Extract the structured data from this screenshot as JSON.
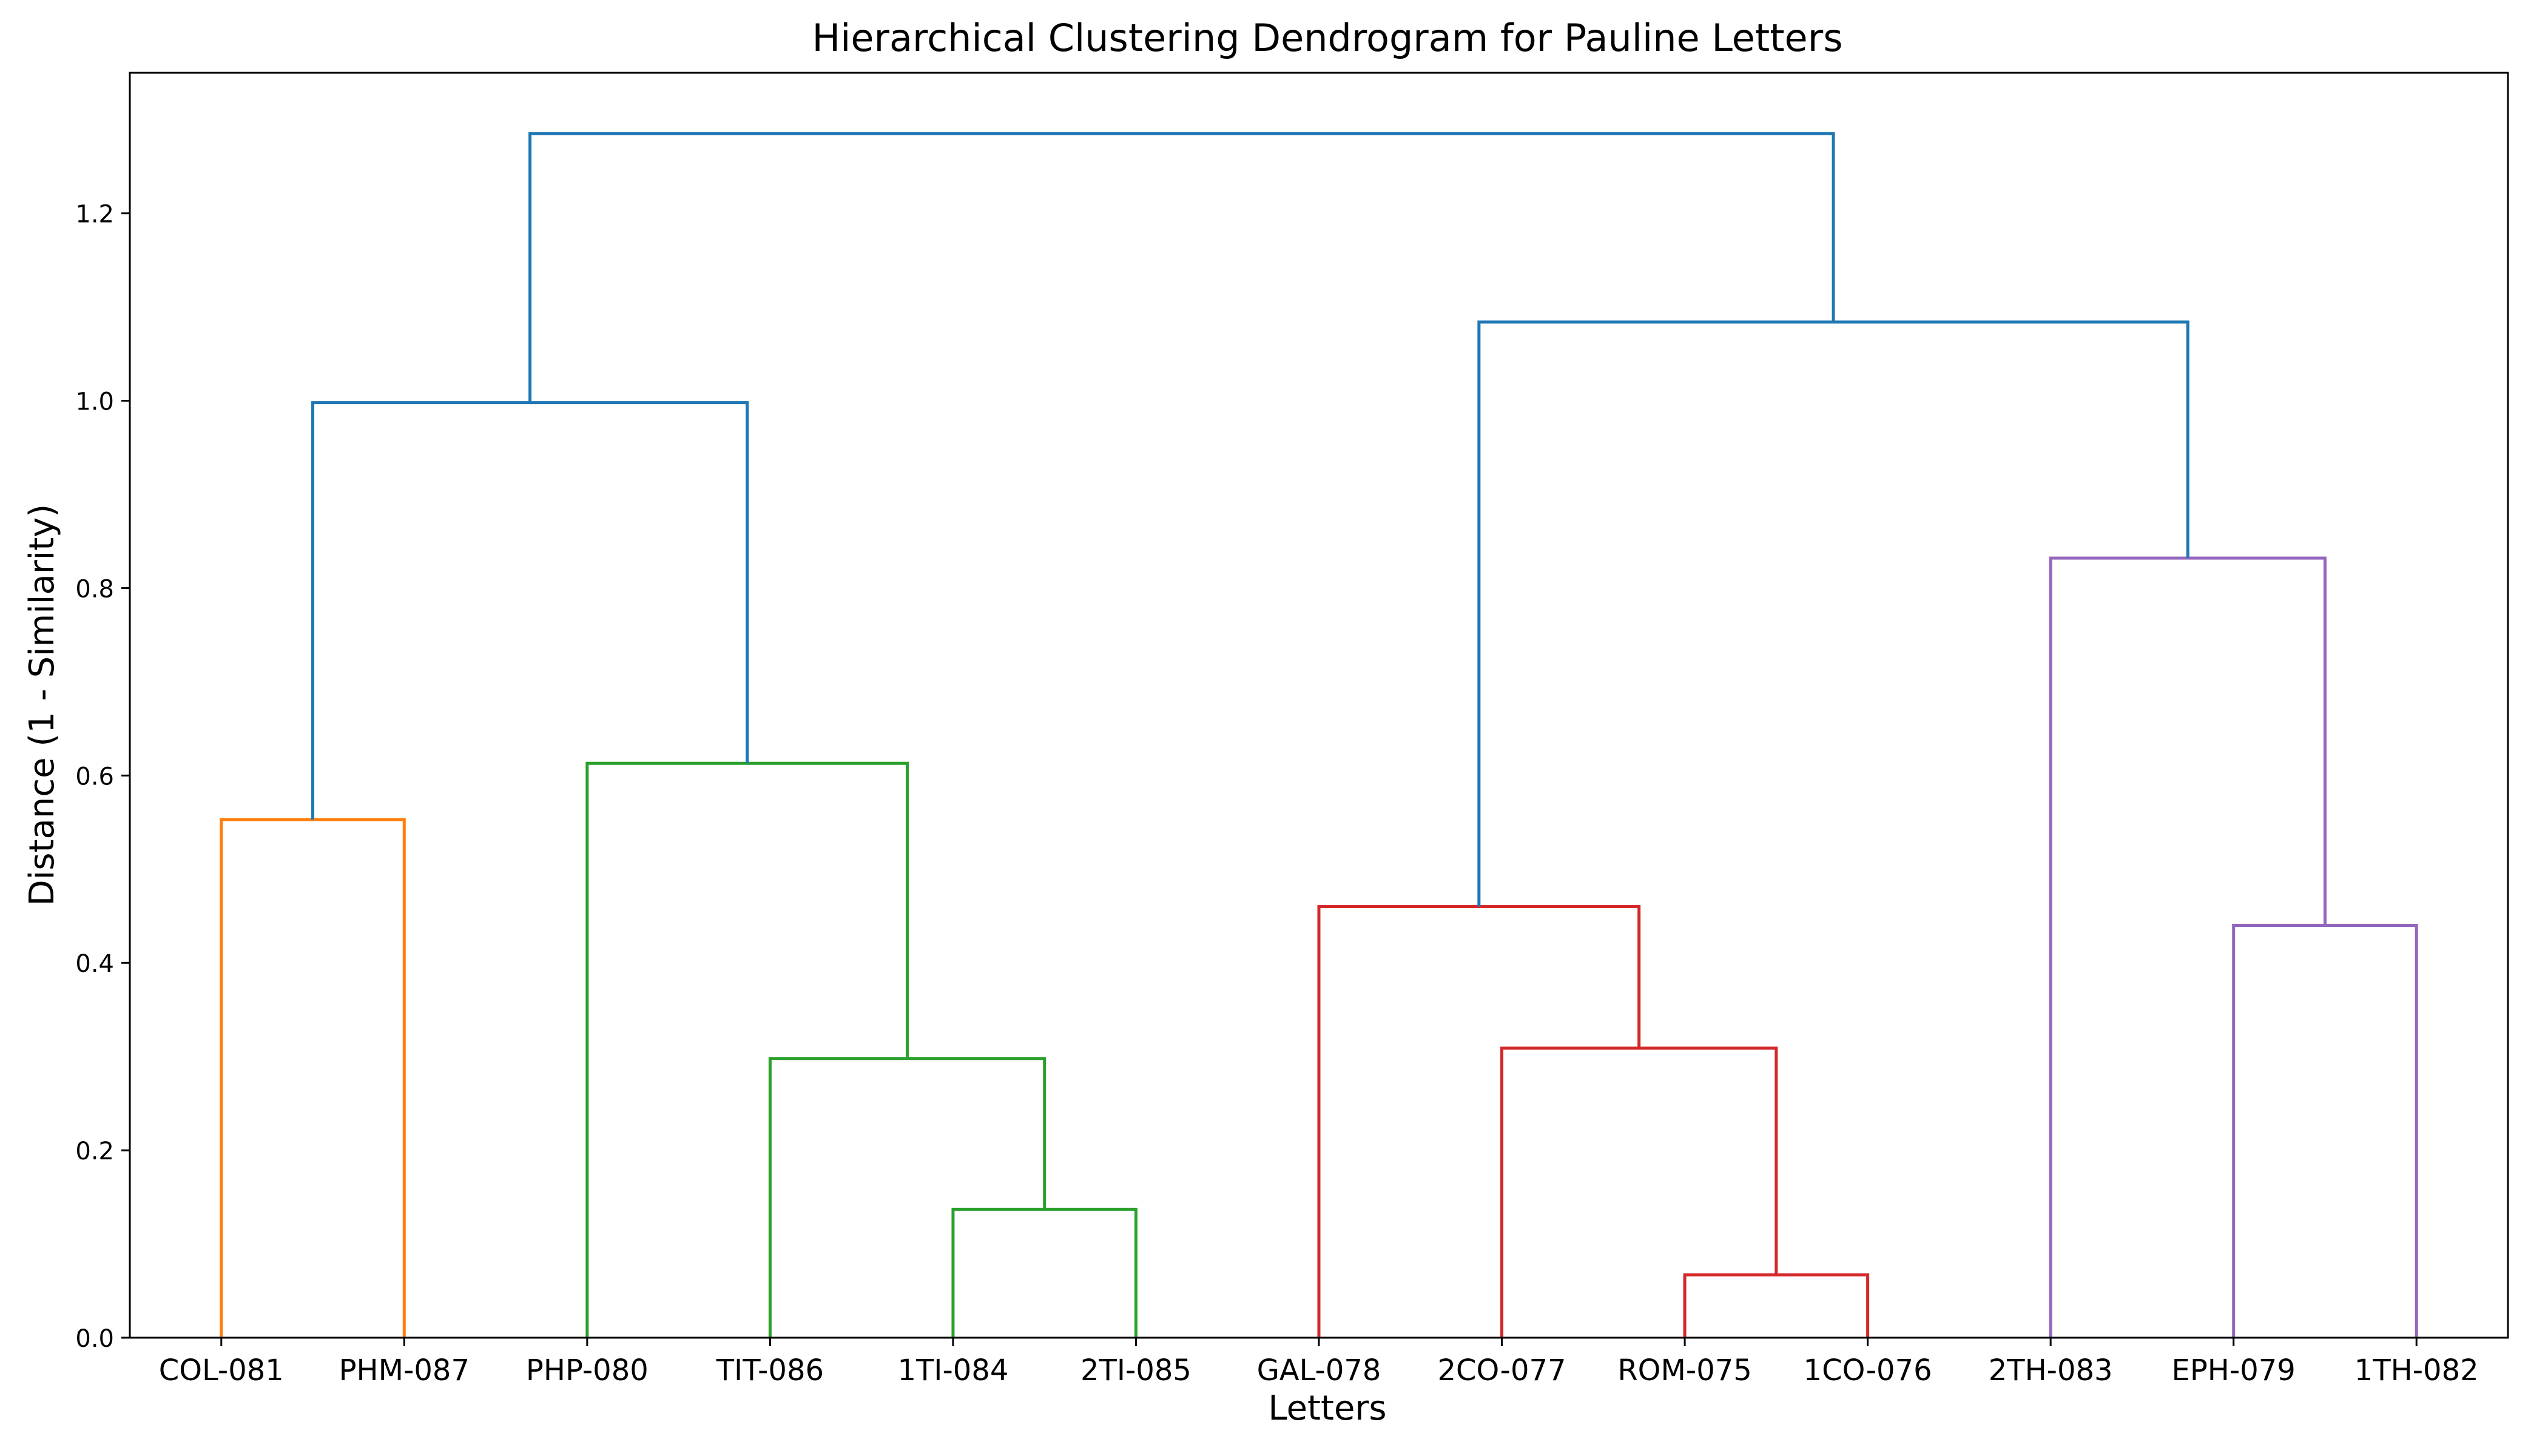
{
  "chart_data": {
    "type": "dendrogram",
    "title": "Hierarchical Clustering Dendrogram for Pauline Letters",
    "xlabel": "Letters",
    "ylabel": "Distance (1 - Similarity)",
    "ylim": [
      0,
      1.35
    ],
    "yticks": [
      0.0,
      0.2,
      0.4,
      0.6,
      0.8,
      1.0,
      1.2
    ],
    "ytick_labels": [
      "0.0",
      "0.2",
      "0.4",
      "0.6",
      "0.8",
      "1.0",
      "1.2"
    ],
    "grid": false,
    "leaves": [
      "COL-081",
      "PHM-087",
      "PHP-080",
      "TIT-086",
      "1TI-084",
      "2TI-085",
      "GAL-078",
      "2CO-077",
      "ROM-075",
      "1CO-076",
      "2TH-083",
      "EPH-079",
      "1TH-082"
    ],
    "colors": {
      "orange": "#ff7f0e",
      "green": "#2ca02c",
      "red": "#d62728",
      "purple": "#9467bd",
      "blue": "#1f77b4"
    },
    "links": [
      {
        "left": "COL-081",
        "right": "PHM-087",
        "height": 0.553,
        "color": "orange"
      },
      {
        "left": "1TI-084",
        "right": "2TI-085",
        "height": 0.137,
        "color": "green"
      },
      {
        "left": "TIT-086",
        "right": [
          "1TI-084",
          "2TI-085"
        ],
        "height": 0.298,
        "color": "green"
      },
      {
        "left": "PHP-080",
        "right": [
          "TIT-086",
          "1TI-084",
          "2TI-085"
        ],
        "height": 0.613,
        "color": "green"
      },
      {
        "left": "ROM-075",
        "right": "1CO-076",
        "height": 0.067,
        "color": "red"
      },
      {
        "left": "2CO-077",
        "right": [
          "ROM-075",
          "1CO-076"
        ],
        "height": 0.309,
        "color": "red"
      },
      {
        "left": "GAL-078",
        "right": [
          "2CO-077",
          "ROM-075",
          "1CO-076"
        ],
        "height": 0.46,
        "color": "red"
      },
      {
        "left": "EPH-079",
        "right": "1TH-082",
        "height": 0.44,
        "color": "purple"
      },
      {
        "left": "2TH-083",
        "right": [
          "EPH-079",
          "1TH-082"
        ],
        "height": 0.832,
        "color": "purple"
      },
      {
        "left": [
          "COL-081",
          "PHM-087"
        ],
        "right": [
          "PHP-080",
          "TIT-086",
          "1TI-084",
          "2TI-085"
        ],
        "height": 0.998,
        "color": "blue"
      },
      {
        "left": [
          "GAL-078",
          "2CO-077",
          "ROM-075",
          "1CO-076"
        ],
        "right": [
          "2TH-083",
          "EPH-079",
          "1TH-082"
        ],
        "height": 1.084,
        "color": "blue"
      },
      {
        "left": [
          "COL-081",
          "PHM-087",
          "PHP-080",
          "TIT-086",
          "1TI-084",
          "2TI-085"
        ],
        "right": [
          "GAL-078",
          "2CO-077",
          "ROM-075",
          "1CO-076",
          "2TH-083",
          "EPH-079",
          "1TH-082"
        ],
        "height": 1.285,
        "color": "blue"
      }
    ]
  }
}
